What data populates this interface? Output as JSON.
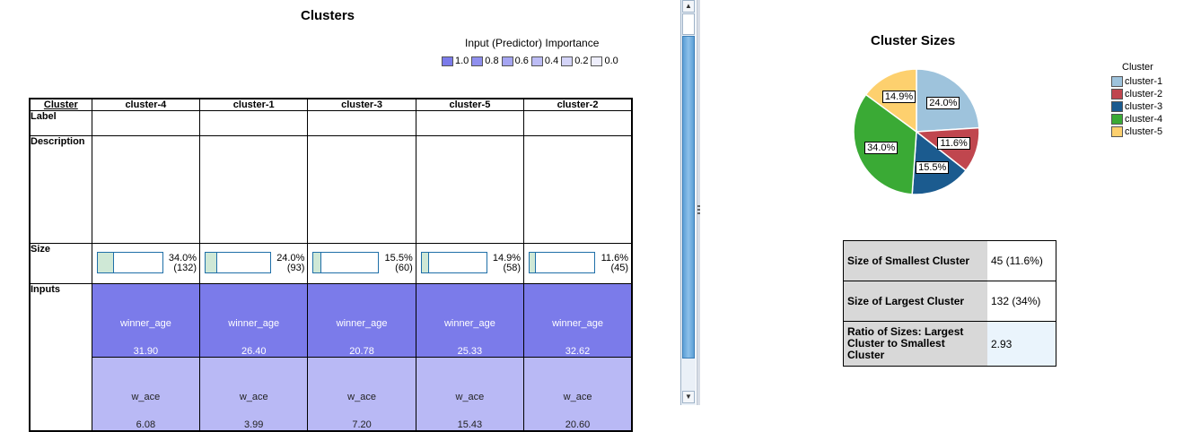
{
  "clusters_panel": {
    "title": "Clusters",
    "importance": {
      "title": "Input (Predictor) Importance",
      "legend": [
        {
          "label": "1.0",
          "color": "#7b7bea"
        },
        {
          "label": "0.8",
          "color": "#8f8fee"
        },
        {
          "label": "0.6",
          "color": "#a5a5f2"
        },
        {
          "label": "0.4",
          "color": "#bcbcf5"
        },
        {
          "label": "0.2",
          "color": "#d4d4f8"
        },
        {
          "label": "0.0",
          "color": "#eeeefc"
        }
      ]
    },
    "table": {
      "corner_header": "Cluster",
      "row_labels": {
        "label": "Label",
        "description": "Description",
        "size": "Size",
        "inputs": "Inputs"
      },
      "columns": [
        {
          "name": "cluster-4",
          "size_pct": "34.0%",
          "size_n": "(132)",
          "size_frac": 0.34,
          "inputs": [
            {
              "name": "winner_age",
              "value": "31.90"
            },
            {
              "name": "w_ace",
              "value": "6.08"
            }
          ]
        },
        {
          "name": "cluster-1",
          "size_pct": "24.0%",
          "size_n": "(93)",
          "size_frac": 0.24,
          "inputs": [
            {
              "name": "winner_age",
              "value": "26.40"
            },
            {
              "name": "w_ace",
              "value": "3.99"
            }
          ]
        },
        {
          "name": "cluster-3",
          "size_pct": "15.5%",
          "size_n": "(60)",
          "size_frac": 0.155,
          "inputs": [
            {
              "name": "winner_age",
              "value": "20.78"
            },
            {
              "name": "w_ace",
              "value": "7.20"
            }
          ]
        },
        {
          "name": "cluster-5",
          "size_pct": "14.9%",
          "size_n": "(58)",
          "size_frac": 0.149,
          "inputs": [
            {
              "name": "winner_age",
              "value": "25.33"
            },
            {
              "name": "w_ace",
              "value": "15.43"
            }
          ]
        },
        {
          "name": "cluster-2",
          "size_pct": "11.6%",
          "size_n": "(45)",
          "size_frac": 0.116,
          "inputs": [
            {
              "name": "winner_age",
              "value": "32.62"
            },
            {
              "name": "w_ace",
              "value": "20.60"
            }
          ]
        }
      ]
    }
  },
  "sizes_panel": {
    "title": "Cluster Sizes",
    "legend_title": "Cluster",
    "summary": [
      {
        "key": "Size of Smallest Cluster",
        "value": "45 (11.6%)"
      },
      {
        "key": "Size of Largest Cluster",
        "value": "132 (34%)"
      },
      {
        "key": "Ratio of Sizes: Largest Cluster to Smallest Cluster",
        "value": "2.93"
      }
    ]
  },
  "chart_data": {
    "type": "pie",
    "title": "Cluster Sizes",
    "slices": [
      {
        "name": "cluster-1",
        "value": 24.0,
        "label": "24.0%",
        "color": "#9ec3dc"
      },
      {
        "name": "cluster-2",
        "value": 11.6,
        "label": "11.6%",
        "color": "#c0464e"
      },
      {
        "name": "cluster-3",
        "value": 15.5,
        "label": "15.5%",
        "color": "#1b5b8f"
      },
      {
        "name": "cluster-4",
        "value": 34.0,
        "label": "34.0%",
        "color": "#3aaa35"
      },
      {
        "name": "cluster-5",
        "value": 14.9,
        "label": "14.9%",
        "color": "#fdd06e"
      }
    ],
    "legend_title": "Cluster",
    "legend_position": "right"
  }
}
